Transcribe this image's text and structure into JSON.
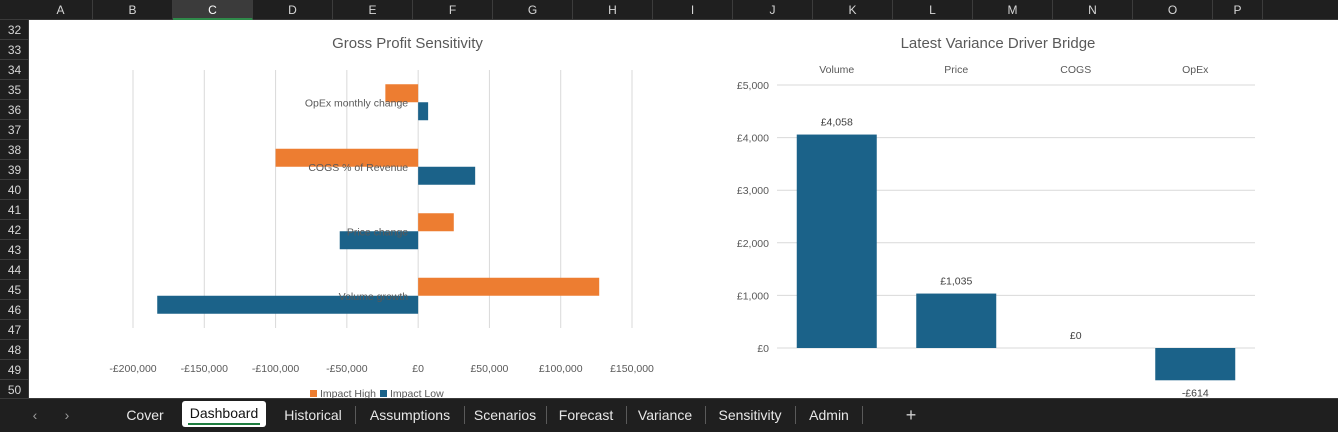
{
  "columns": [
    "A",
    "B",
    "C",
    "D",
    "E",
    "F",
    "G",
    "H",
    "I",
    "J",
    "K",
    "L",
    "M",
    "N",
    "O",
    "P"
  ],
  "selected_column": "C",
  "rows": [
    "32",
    "33",
    "34",
    "35",
    "36",
    "37",
    "38",
    "39",
    "40",
    "41",
    "42",
    "43",
    "44",
    "45",
    "46",
    "47",
    "48",
    "49",
    "50"
  ],
  "sheet_tabs": {
    "tabs": [
      {
        "label": "Cover"
      },
      {
        "label": "Dashboard"
      },
      {
        "label": "Historical"
      },
      {
        "label": "Assumptions"
      },
      {
        "label": "Scenarios"
      },
      {
        "label": "Forecast"
      },
      {
        "label": "Variance"
      },
      {
        "label": "Sensitivity"
      },
      {
        "label": "Admin"
      }
    ],
    "active_tab": "Dashboard",
    "add_symbol": "+",
    "prev_symbol": "‹",
    "next_symbol": "›"
  },
  "chart_data": [
    {
      "type": "bar",
      "orientation": "horizontal",
      "title": "Gross Profit Sensitivity",
      "categories": [
        "Volume growth",
        "Price change",
        "COGS % of Revenue",
        "OpEx monthly change"
      ],
      "series": [
        {
          "name": "Impact High",
          "color": "#ED7D31",
          "values": [
            127000,
            25000,
            -100000,
            -23000
          ]
        },
        {
          "name": "Impact Low",
          "color": "#1B6289",
          "values": [
            -183000,
            -55000,
            40000,
            7000
          ]
        }
      ],
      "xlim": [
        -200000,
        150000
      ],
      "xticks": [
        -200000,
        -150000,
        -100000,
        -50000,
        0,
        50000,
        100000,
        150000
      ],
      "xtick_labels": [
        "-£200,000",
        "-£150,000",
        "-£100,000",
        "-£50,000",
        "£0",
        "£50,000",
        "£100,000",
        "£150,000"
      ],
      "grid": true,
      "legend_position": "bottom"
    },
    {
      "type": "bar",
      "title": "Latest Variance Driver Bridge",
      "categories": [
        "Volume",
        "Price",
        "COGS",
        "OpEx"
      ],
      "values": [
        4058,
        1035,
        0,
        -614
      ],
      "value_labels": [
        "£4,058",
        "£1,035",
        "£0",
        "-£614"
      ],
      "color": "#1B6289",
      "ylim": [
        -1000,
        5000
      ],
      "yticks": [
        0,
        1000,
        2000,
        3000,
        4000,
        5000
      ],
      "ytick_labels": [
        "£0",
        "£1,000",
        "£2,000",
        "£3,000",
        "£4,000",
        "£5,000"
      ],
      "category_labels_position": "top",
      "grid": true
    }
  ]
}
